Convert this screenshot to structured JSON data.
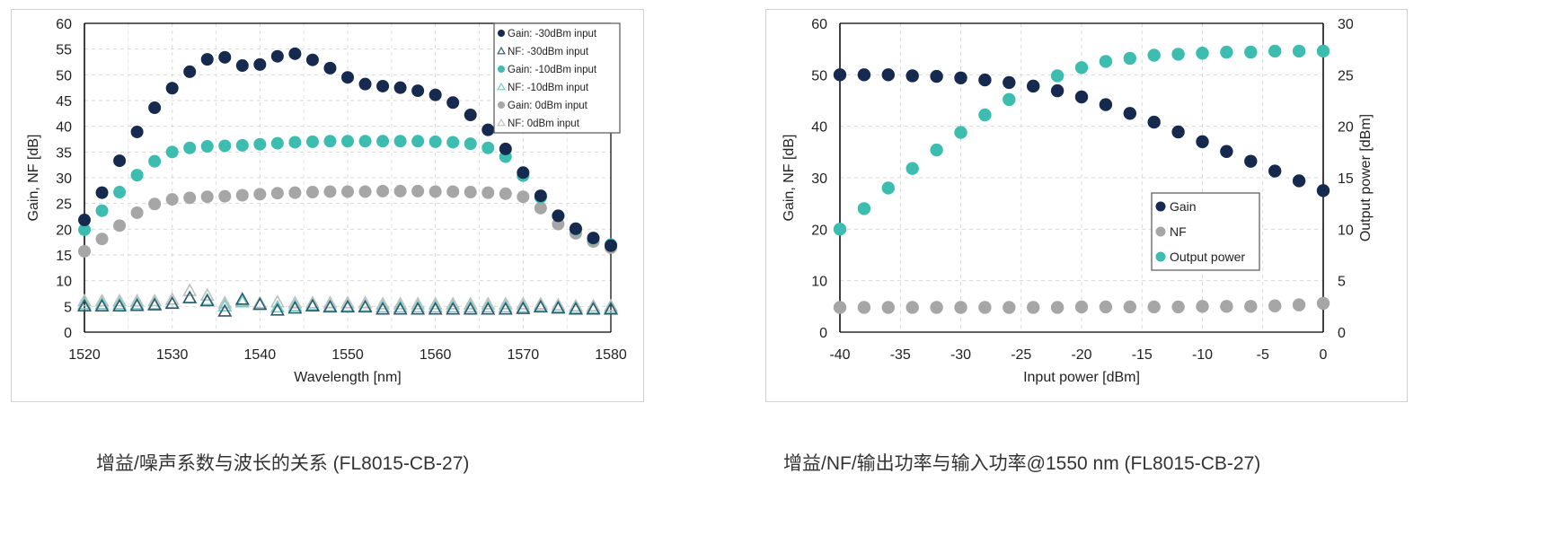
{
  "captions": [
    "增益/噪声系数与波长的关系 (FL8015-CB-27)",
    "增益/NF/输出功率与输入功率@1550 nm (FL8015-CB-27)"
  ],
  "colors": {
    "navy": "#152a4e",
    "teal": "#3dbdb0",
    "gray": "#a6a6a6",
    "nf_navy": "#2f5a6e",
    "nf_teal": "#6fcfc4",
    "nf_gray": "#bfbfbf"
  },
  "chart_data": [
    {
      "type": "scatter",
      "xlabel": "Wavelength [nm]",
      "ylabel": "Gain, NF [dB]",
      "xlim": [
        1520,
        1580
      ],
      "ylim": [
        0,
        60
      ],
      "xticks": [
        1520,
        1530,
        1540,
        1550,
        1560,
        1570,
        1580
      ],
      "yticks": [
        0,
        5,
        10,
        15,
        20,
        25,
        30,
        35,
        40,
        45,
        50,
        55,
        60
      ],
      "grid": true,
      "legend_position": "top-right",
      "x": [
        1520,
        1522,
        1524,
        1526,
        1528,
        1530,
        1532,
        1534,
        1536,
        1538,
        1540,
        1542,
        1544,
        1546,
        1548,
        1550,
        1552,
        1554,
        1556,
        1558,
        1560,
        1562,
        1564,
        1566,
        1568,
        1570,
        1572,
        1574,
        1576,
        1578,
        1580
      ],
      "series": [
        {
          "name": "Gain: -30dBm input",
          "marker": "circle",
          "color": "#152a4e",
          "values": [
            21.8,
            27.1,
            33.3,
            38.9,
            43.6,
            47.4,
            50.6,
            53.0,
            53.4,
            51.8,
            52.0,
            53.6,
            54.1,
            52.9,
            51.3,
            49.5,
            48.2,
            47.8,
            47.5,
            46.9,
            46.1,
            44.6,
            42.2,
            39.3,
            35.6,
            31.0,
            26.5,
            22.6,
            20.1,
            18.3,
            16.8
          ]
        },
        {
          "name": "NF: -30dBm input",
          "marker": "triangle",
          "color": "#2f5a6e",
          "values": [
            5.0,
            5.0,
            5.0,
            5.1,
            5.2,
            5.5,
            6.6,
            6.0,
            4.0,
            6.3,
            5.3,
            4.2,
            4.6,
            5.0,
            4.8,
            4.8,
            4.8,
            4.4,
            4.4,
            4.4,
            4.4,
            4.4,
            4.4,
            4.4,
            4.4,
            4.5,
            4.8,
            4.6,
            4.4,
            4.4,
            4.4
          ]
        },
        {
          "name": "Gain: -10dBm input",
          "marker": "circle",
          "color": "#3dbdb0",
          "values": [
            19.9,
            23.6,
            27.2,
            30.5,
            33.2,
            35.0,
            35.8,
            36.1,
            36.2,
            36.3,
            36.5,
            36.7,
            36.9,
            37.0,
            37.1,
            37.1,
            37.1,
            37.1,
            37.1,
            37.1,
            37.0,
            36.9,
            36.6,
            35.8,
            34.1,
            30.4,
            26.2,
            22.6,
            20.0,
            18.2,
            17.0
          ]
        },
        {
          "name": "NF: -10dBm input",
          "marker": "triangle",
          "color": "#6fcfc4",
          "values": [
            5.4,
            5.4,
            5.4,
            5.4,
            5.4,
            5.6,
            6.6,
            6.2,
            5.0,
            5.8,
            5.4,
            4.8,
            5.0,
            5.2,
            5.0,
            5.0,
            5.0,
            4.8,
            4.8,
            4.8,
            4.8,
            4.8,
            4.8,
            4.8,
            4.8,
            4.8,
            5.0,
            4.8,
            4.6,
            4.6,
            4.6
          ]
        },
        {
          "name": "Gain: 0dBm input",
          "marker": "circle",
          "color": "#a6a6a6",
          "values": [
            15.7,
            18.1,
            20.7,
            23.2,
            24.9,
            25.8,
            26.1,
            26.3,
            26.4,
            26.6,
            26.8,
            27.0,
            27.1,
            27.2,
            27.3,
            27.3,
            27.3,
            27.4,
            27.4,
            27.4,
            27.3,
            27.3,
            27.2,
            27.1,
            26.9,
            26.3,
            24.1,
            21.0,
            19.2,
            17.6,
            16.4
          ]
        },
        {
          "name": "NF: 0dBm input",
          "marker": "triangle",
          "color": "#bfbfbf",
          "values": [
            6.0,
            6.0,
            6.0,
            6.0,
            6.0,
            6.3,
            8.0,
            7.1,
            5.6,
            6.0,
            5.6,
            5.8,
            5.6,
            5.6,
            5.6,
            5.6,
            5.6,
            5.4,
            5.4,
            5.4,
            5.4,
            5.4,
            5.4,
            5.4,
            5.4,
            5.4,
            5.4,
            5.2,
            5.0,
            5.0,
            5.0
          ]
        }
      ]
    },
    {
      "type": "scatter",
      "xlabel": "Input power [dBm]",
      "ylabel": "Gain, NF [dB]",
      "y2label": "Output power [dBm]",
      "xlim": [
        -40,
        0
      ],
      "ylim": [
        0,
        60
      ],
      "y2lim": [
        0,
        30
      ],
      "xticks": [
        -40,
        -35,
        -30,
        -25,
        -20,
        -15,
        -10,
        -5,
        0
      ],
      "yticks": [
        0,
        10,
        20,
        30,
        40,
        50,
        60
      ],
      "y2ticks": [
        0,
        5,
        10,
        15,
        20,
        25,
        30
      ],
      "grid": true,
      "legend_position": "center-right",
      "x": [
        -40,
        -38,
        -36,
        -34,
        -32,
        -30,
        -28,
        -26,
        -24,
        -22,
        -20,
        -18,
        -16,
        -14,
        -12,
        -10,
        -8,
        -6,
        -4,
        -2,
        0
      ],
      "series": [
        {
          "name": "Gain",
          "axis": "left",
          "color": "#152a4e",
          "values": [
            50.0,
            50.0,
            50.0,
            49.8,
            49.7,
            49.4,
            49.0,
            48.5,
            47.8,
            46.9,
            45.7,
            44.2,
            42.5,
            40.8,
            38.9,
            37.0,
            35.1,
            33.2,
            31.3,
            29.4,
            27.5
          ]
        },
        {
          "name": "NF",
          "axis": "left",
          "color": "#a6a6a6",
          "values": [
            4.8,
            4.8,
            4.8,
            4.8,
            4.8,
            4.8,
            4.8,
            4.8,
            4.8,
            4.8,
            4.9,
            4.9,
            4.9,
            4.9,
            4.9,
            5.0,
            5.0,
            5.0,
            5.1,
            5.3,
            5.6
          ]
        },
        {
          "name": "Output power",
          "axis": "right",
          "color": "#3dbdb0",
          "values": [
            10.0,
            12.0,
            14.0,
            15.9,
            17.7,
            19.4,
            21.1,
            22.6,
            23.9,
            24.9,
            25.7,
            26.3,
            26.6,
            26.9,
            27.0,
            27.1,
            27.2,
            27.2,
            27.3,
            27.3,
            27.3
          ]
        }
      ]
    }
  ]
}
